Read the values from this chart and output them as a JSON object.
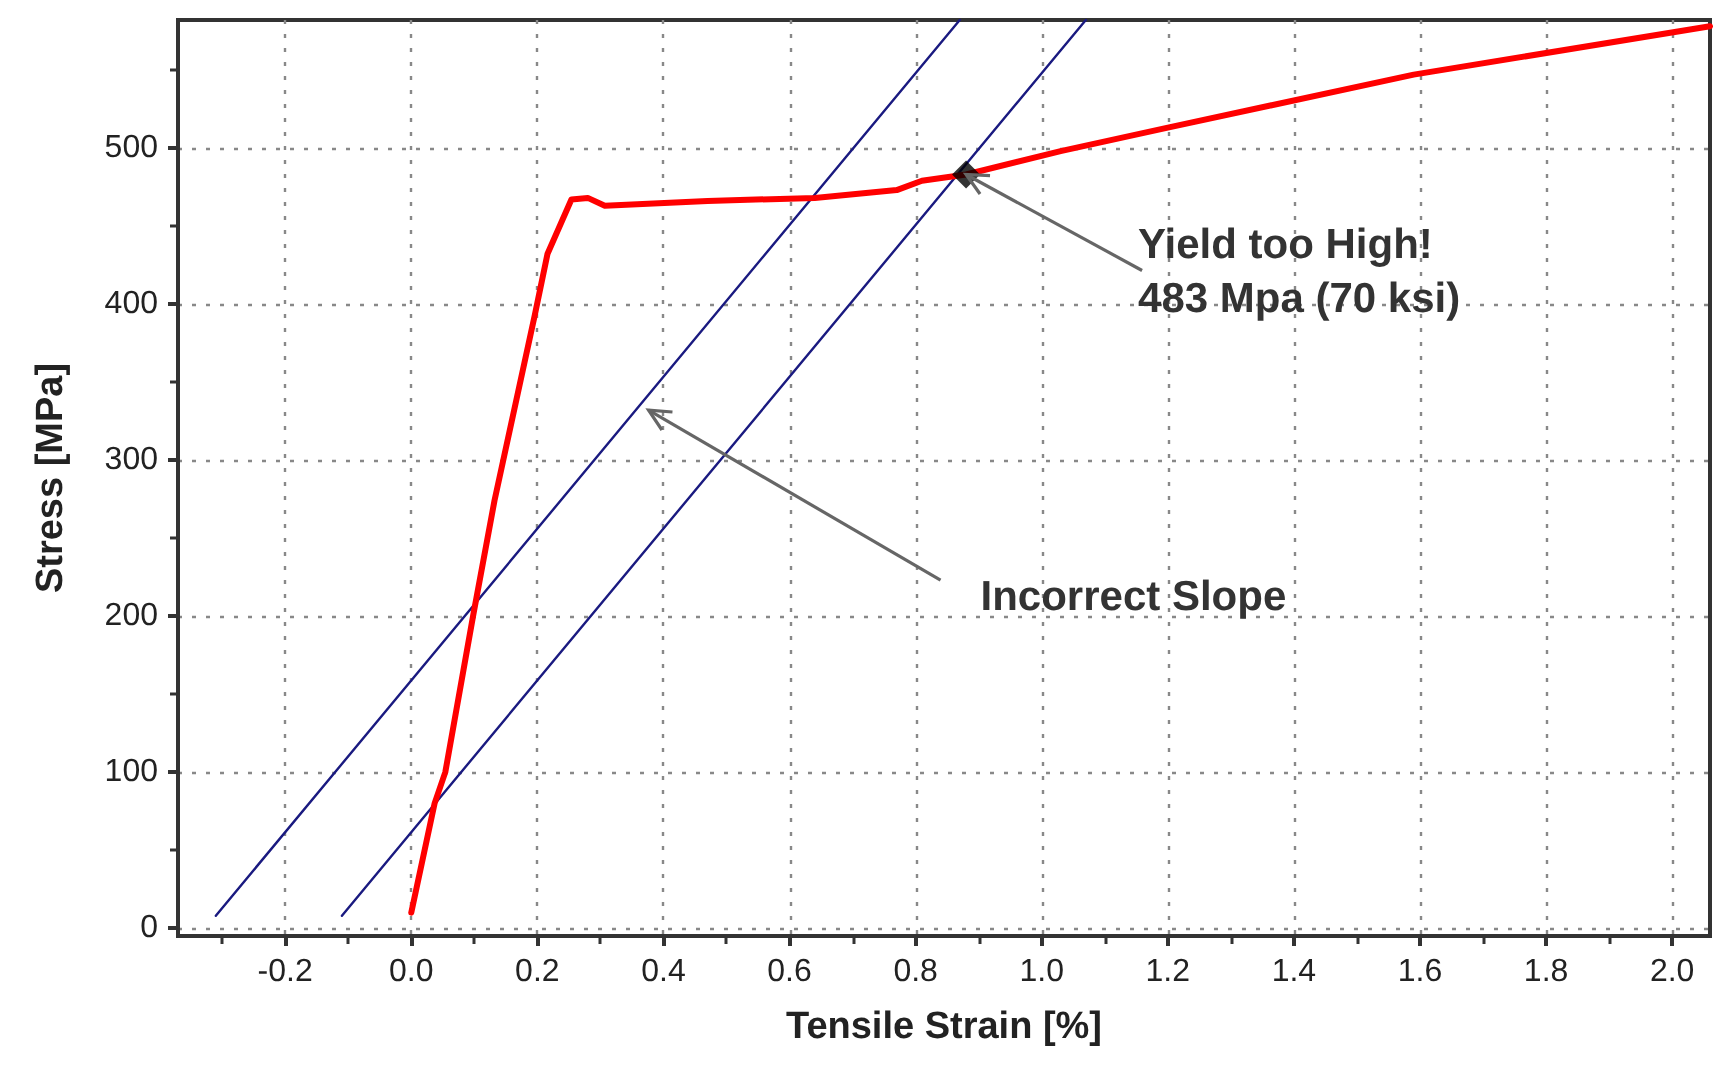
{
  "chart_data": {
    "type": "line",
    "xlabel": "Tensile Strain [%]",
    "ylabel": "Stress [MPa]",
    "xlim": [
      -0.37,
      2.06
    ],
    "ylim": [
      -5,
      582
    ],
    "xticks": [
      {
        "value": -0.3,
        "label": null
      },
      -0.2,
      {
        "value": -0.1,
        "label": null
      },
      {
        "value": 0,
        "label": "0.0"
      },
      {
        "value": 0.1,
        "label": null
      },
      0.2,
      {
        "value": 0.3,
        "label": null
      },
      0.4,
      {
        "value": 0.5,
        "label": null
      },
      0.6,
      {
        "value": 0.7,
        "label": null
      },
      0.8,
      {
        "value": 0.9,
        "label": null
      },
      {
        "value": 1.0,
        "label": "1.0"
      },
      {
        "value": 1.1,
        "label": null
      },
      1.2,
      {
        "value": 1.3,
        "label": null
      },
      1.4,
      {
        "value": 1.5,
        "label": null
      },
      1.6,
      {
        "value": 1.7,
        "label": null
      },
      1.8,
      {
        "value": 1.9,
        "label": null
      },
      {
        "value": 2.0,
        "label": "2.0"
      }
    ],
    "yticks": [
      0,
      {
        "value": 50,
        "label": null
      },
      100,
      {
        "value": 150,
        "label": null
      },
      200,
      {
        "value": 250,
        "label": null
      },
      300,
      {
        "value": 350,
        "label": null
      },
      400,
      {
        "value": 450,
        "label": null
      },
      500,
      {
        "value": 550,
        "label": null
      }
    ],
    "grid": true,
    "marker": "none",
    "line_style": "solid",
    "series": [
      {
        "color": "#1a1a80",
        "x": [
          -0.31,
          0.87
        ],
        "values": [
          8,
          582
        ]
      },
      {
        "color": "#1a1a80",
        "x": [
          -0.11,
          1.07
        ],
        "values": [
          8,
          582
        ]
      },
      {
        "color": "#ff0000",
        "x": [
          0.0,
          0.037,
          0.054,
          0.098,
          0.132,
          0.196,
          0.216,
          0.254,
          0.28,
          0.307,
          0.47,
          0.64,
          0.77,
          0.81,
          0.88,
          1.03,
          1.2,
          1.59,
          2.06
        ],
        "values": [
          10,
          80,
          100,
          200,
          274,
          393,
          432,
          467,
          468,
          463,
          466,
          468,
          473,
          479,
          483,
          498,
          513,
          547,
          578
        ]
      },
      {
        "type": "scatter",
        "marker": "diamond",
        "color": "#000000",
        "x": [
          0.88
        ],
        "values": [
          483
        ]
      }
    ],
    "annotations": [
      {
        "text": "Yield  too High!\n483 Mpa (70 ksi)",
        "x": 0.88,
        "y": 483
      },
      {
        "text": "Incorrect Slope",
        "x": 0.37,
        "y": 332
      }
    ]
  }
}
